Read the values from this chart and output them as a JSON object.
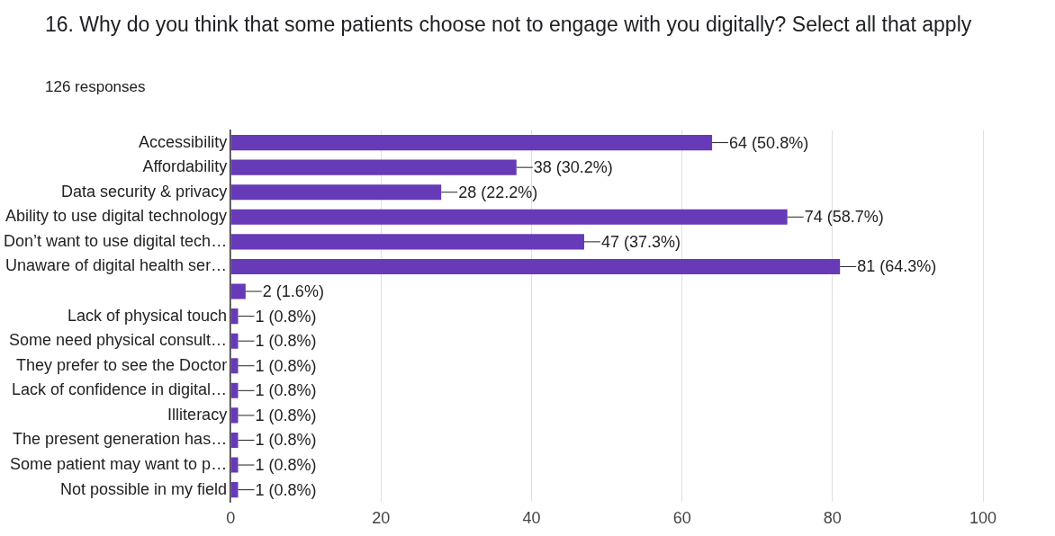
{
  "chart_data": {
    "type": "bar",
    "orientation": "horizontal",
    "title": "16. Why do you think that some patients choose not to engage with you digitally?  Select all that apply",
    "subtitle": "126 responses",
    "categories": [
      "Accessibility",
      "Affordability",
      "Data security & privacy",
      "Ability to use digital technology",
      "Don’t want to use digital tech…",
      "Unaware of digital health ser…",
      null,
      "Lack of physical touch",
      "Some need physical consult…",
      "They prefer to see the Doctor",
      "Lack of confidence in digital…",
      "Illiteracy",
      "The present generation has…",
      "Some patient may want to p…",
      "Not possible in my field"
    ],
    "values": [
      64,
      38,
      28,
      74,
      47,
      81,
      2,
      1,
      1,
      1,
      1,
      1,
      1,
      1,
      1
    ],
    "value_labels": [
      "64 (50.8%)",
      "38 (30.2%)",
      "28 (22.2%)",
      "74 (58.7%)",
      "47 (37.3%)",
      "81 (64.3%)",
      "2 (1.6%)",
      "1 (0.8%)",
      "1 (0.8%)",
      "1 (0.8%)",
      "1 (0.8%)",
      "1 (0.8%)",
      "1 (0.8%)",
      "1 (0.8%)",
      "1 (0.8%)"
    ],
    "color": "#673ab7",
    "xlim": [
      0,
      100
    ],
    "xticks": [
      0,
      20,
      40,
      60,
      80,
      100
    ],
    "grid": "x"
  }
}
